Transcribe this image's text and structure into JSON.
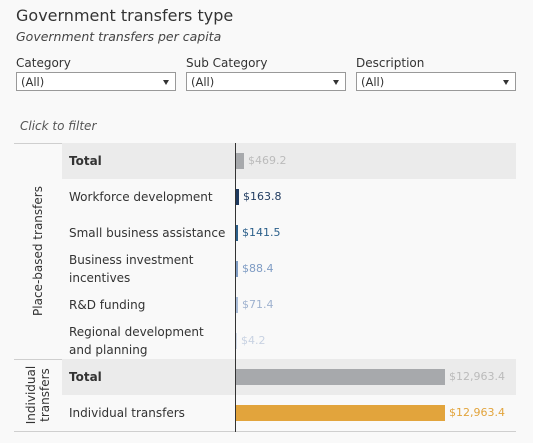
{
  "header": {
    "title": "Government transfers type",
    "subtitle": "Government transfers per capita"
  },
  "filters": [
    {
      "label": "Category",
      "value": "(All)"
    },
    {
      "label": "Sub Category",
      "value": "(All)"
    },
    {
      "label": "Description",
      "value": "(All)"
    }
  ],
  "click_to_filter": "Click to filter",
  "colors": {
    "total_bar": "#a7a9ac",
    "workforce": "#1f3a5f",
    "small_business": "#2b5f8a",
    "business_investment": "#7f9cc4",
    "rd": "#a9bcd8",
    "regional": "#d2dbe8",
    "individual": "#e2a43c"
  },
  "groups": [
    {
      "label": "Place-based transfers"
    },
    {
      "label": "Individual transfers"
    }
  ],
  "chart_data": {
    "type": "bar",
    "orientation": "horizontal",
    "xlim": [
      0,
      12963.4
    ],
    "rows": [
      {
        "group": "Place-based transfers",
        "category": "Total",
        "value": 469.2,
        "value_label": "$469.2",
        "is_total": true,
        "color": "#a7a9ac",
        "label_color": "#bbbbbb"
      },
      {
        "group": "Place-based transfers",
        "category": "Workforce development",
        "value": 163.8,
        "value_label": "$163.8",
        "color": "#1f3a5f",
        "label_color": "#1f3a5f"
      },
      {
        "group": "Place-based transfers",
        "category": "Small business assistance",
        "value": 141.5,
        "value_label": "$141.5",
        "color": "#2b5f8a",
        "label_color": "#2b5f8a"
      },
      {
        "group": "Place-based transfers",
        "category": "Business investment incentives",
        "value": 88.4,
        "value_label": "$88.4",
        "color": "#7f9cc4",
        "label_color": "#7f9cc4"
      },
      {
        "group": "Place-based transfers",
        "category": "R&D funding",
        "value": 71.4,
        "value_label": "$71.4",
        "color": "#a9bcd8",
        "label_color": "#9fb2cf"
      },
      {
        "group": "Place-based transfers",
        "category": "Regional development and planning",
        "value": 4.2,
        "value_label": "$4.2",
        "color": "#d2dbe8",
        "label_color": "#c8d2e2"
      },
      {
        "group": "Individual transfers",
        "category": "Total",
        "value": 12963.4,
        "value_label": "$12,963.4",
        "is_total": true,
        "color": "#a7a9ac",
        "label_color": "#bbbbbb"
      },
      {
        "group": "Individual transfers",
        "category": "Individual transfers",
        "value": 12963.4,
        "value_label": "$12,963.4",
        "color": "#e2a43c",
        "label_color": "#e2a43c"
      }
    ]
  }
}
